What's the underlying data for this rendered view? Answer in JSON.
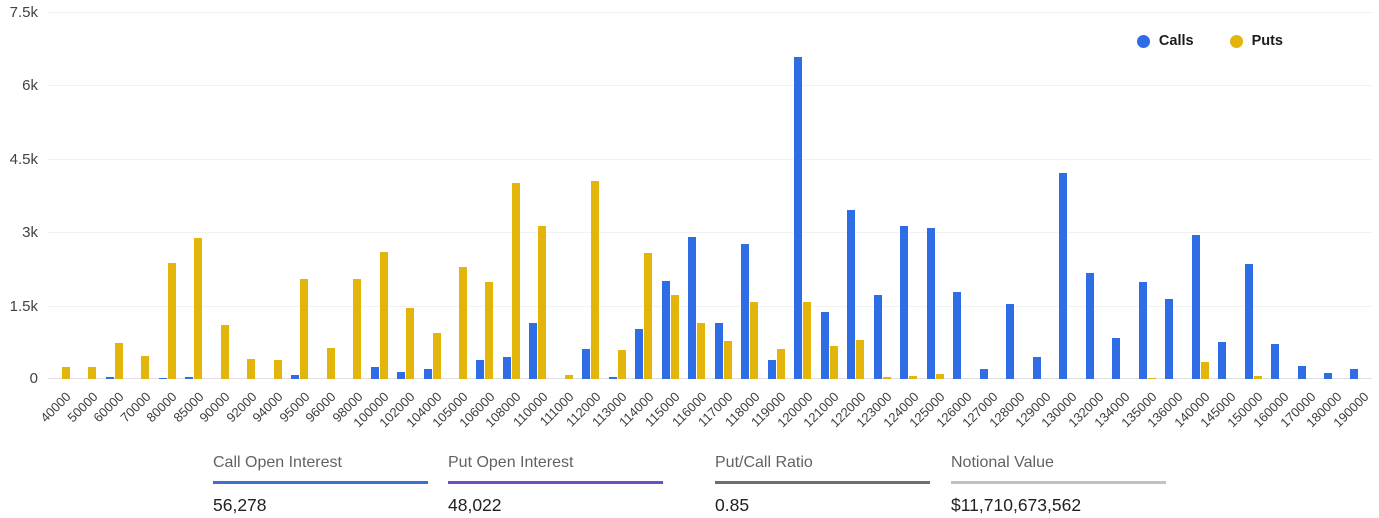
{
  "chart_data": {
    "type": "bar",
    "title": "",
    "xlabel": "",
    "ylabel": "",
    "ylim": [
      0,
      7500
    ],
    "grid": true,
    "legend_position": "top-right",
    "yticks": [
      {
        "value": 0,
        "label": "0"
      },
      {
        "value": 1500,
        "label": "1.5k"
      },
      {
        "value": 3000,
        "label": "3k"
      },
      {
        "value": 4500,
        "label": "4.5k"
      },
      {
        "value": 6000,
        "label": "6k"
      },
      {
        "value": 7500,
        "label": "7.5k"
      }
    ],
    "categories": [
      "40000",
      "50000",
      "60000",
      "70000",
      "80000",
      "85000",
      "90000",
      "92000",
      "94000",
      "95000",
      "96000",
      "98000",
      "100000",
      "102000",
      "104000",
      "105000",
      "106000",
      "108000",
      "110000",
      "111000",
      "112000",
      "113000",
      "114000",
      "115000",
      "116000",
      "117000",
      "118000",
      "119000",
      "120000",
      "121000",
      "122000",
      "123000",
      "124000",
      "125000",
      "126000",
      "127000",
      "128000",
      "129000",
      "130000",
      "132000",
      "134000",
      "135000",
      "136000",
      "140000",
      "145000",
      "150000",
      "160000",
      "170000",
      "180000",
      "190000"
    ],
    "series": [
      {
        "name": "Calls",
        "color": "#2E6DE6",
        "values": [
          0,
          0,
          50,
          0,
          30,
          40,
          0,
          0,
          0,
          90,
          0,
          0,
          240,
          140,
          200,
          0,
          390,
          440,
          1150,
          0,
          610,
          40,
          1020,
          2010,
          2900,
          1150,
          2750,
          390,
          6580,
          1360,
          3450,
          1720,
          3130,
          3080,
          1770,
          200,
          1530,
          440,
          4200,
          2160,
          830,
          1980,
          1640,
          2950,
          760,
          2340,
          720,
          270,
          130,
          210
        ]
      },
      {
        "name": "Puts",
        "color": "#E3B50B",
        "values": [
          250,
          240,
          730,
          470,
          2370,
          2890,
          1100,
          400,
          390,
          2050,
          640,
          2050,
          2600,
          1450,
          930,
          2290,
          1980,
          4000,
          3130,
          80,
          4050,
          590,
          2570,
          1720,
          1150,
          770,
          1580,
          610,
          1580,
          680,
          790,
          40,
          60,
          110,
          0,
          0,
          0,
          0,
          0,
          0,
          0,
          30,
          0,
          350,
          0,
          60,
          0,
          0,
          0,
          0
        ]
      }
    ]
  },
  "stats": {
    "items": [
      {
        "label": "Call Open Interest",
        "value": "56,278",
        "accent": "#3B6FD6"
      },
      {
        "label": "Put Open Interest",
        "value": "48,022",
        "accent": "#6C4EC8"
      },
      {
        "label": "Put/Call Ratio",
        "value": "0.85",
        "accent": "#6E6E6E"
      },
      {
        "label": "Notional Value",
        "value": "$11,710,673,562",
        "accent": "#C2C2C2"
      }
    ]
  }
}
